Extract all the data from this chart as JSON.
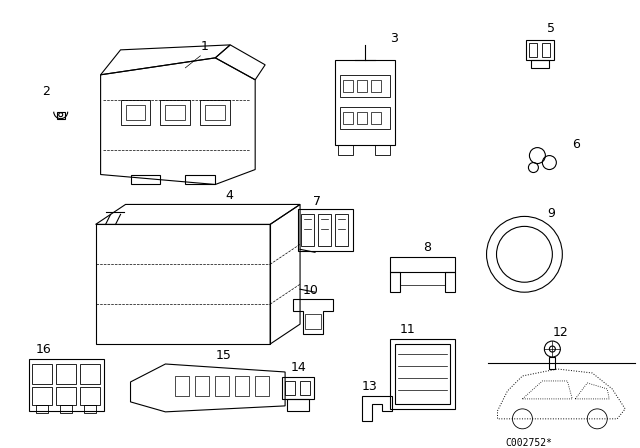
{
  "bg_color": "#ffffff",
  "line_color": "#000000",
  "code": "C002752*"
}
